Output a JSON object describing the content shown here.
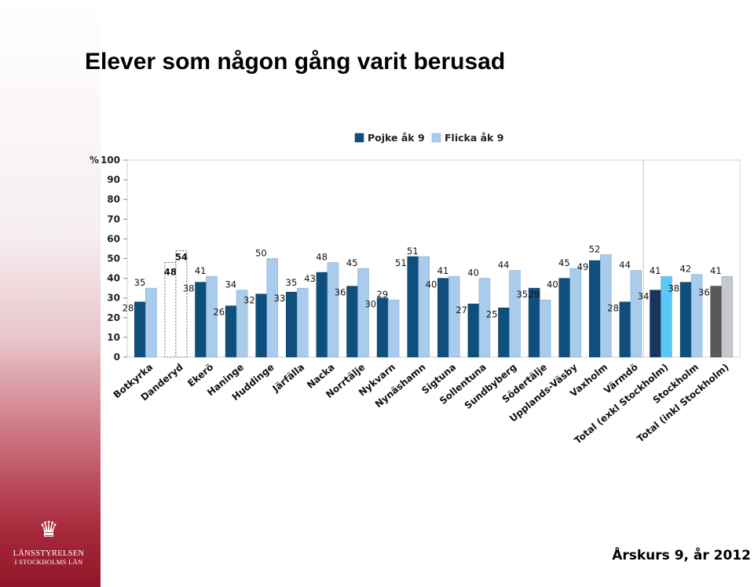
{
  "title": "Elever som någon gång varit berusad",
  "footer": "Årskurs 9, år 2012",
  "logo": {
    "line1": "LÄNSSTYRELSEN",
    "line2": "I STOCKHOLMS LÄN"
  },
  "colors": {
    "boy": "#0f4f7d",
    "girl": "#a9cbec",
    "boy_total_excl": "#16365c",
    "girl_total_excl": "#5ac8f5",
    "boy_total_incl": "#595959",
    "girl_total_incl": "#c8c8c8"
  },
  "chart_data": {
    "type": "bar",
    "ylabel": "%",
    "ylim": [
      0,
      100
    ],
    "yticks": [
      0,
      10,
      20,
      30,
      40,
      50,
      60,
      70,
      80,
      90,
      100
    ],
    "legend_position": "top-right",
    "grid": false,
    "categories": [
      "Botkyrka",
      "Danderyd",
      "Ekerö",
      "Haninge",
      "Huddinge",
      "Järfälla",
      "Nacka",
      "Norrtälje",
      "Nykvarn",
      "Nynäshamn",
      "Sigtuna",
      "Sollentuna",
      "Sundbyberg",
      "Södertälje",
      "Upplands-Väsby",
      "Vaxholm",
      "Värmdö",
      "Total (exkl Stockholm)",
      "Stockholm",
      "Total (inkl Stockholm)"
    ],
    "series": [
      {
        "name": "Pojke åk 9",
        "values": [
          28,
          48,
          38,
          26,
          32,
          33,
          43,
          36,
          30,
          51,
          40,
          27,
          25,
          35,
          40,
          49,
          28,
          34,
          38,
          36
        ]
      },
      {
        "name": "Flicka åk 9",
        "values": [
          35,
          54,
          41,
          34,
          50,
          35,
          48,
          45,
          29,
          51,
          41,
          40,
          44,
          29,
          45,
          52,
          44,
          41,
          42,
          41
        ]
      }
    ],
    "data_labels_boy": [
      "28",
      "48",
      "38",
      "26",
      "32",
      "33",
      "43",
      "36",
      "30",
      "51",
      "40",
      "27",
      "25",
      "35",
      "40",
      "49",
      "28",
      "34",
      "38",
      "36"
    ],
    "data_labels_girl": [
      "35",
      "54",
      "41",
      "34",
      "50",
      "35",
      "48",
      "45",
      "29",
      "51",
      "41",
      "40",
      "44",
      "29",
      "45",
      "52",
      "44",
      "41",
      "42",
      "41"
    ],
    "dashed_categories": [
      "Danderyd"
    ]
  }
}
